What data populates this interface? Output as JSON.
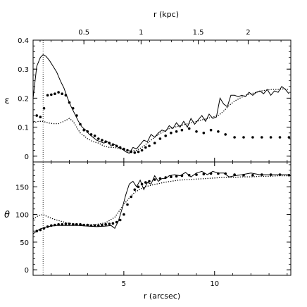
{
  "colors": {
    "frame": "#000000",
    "lines": "#000000",
    "background": "#ffffff"
  },
  "chart_data": [
    {
      "type": "line",
      "panel": "top",
      "ylabel": "ε",
      "xlim": [
        0,
        14.2
      ],
      "ylim": [
        -0.02,
        0.4
      ],
      "x_ticks_bottom": [
        5,
        10
      ],
      "y_ticks": [
        0,
        0.1,
        0.2,
        0.3,
        0.4
      ],
      "y_tick_labels": [
        "0",
        "0.1",
        "0.2",
        "0.3",
        "0.4"
      ],
      "top_axis": {
        "label": "r (kpc)",
        "tick_labels": [
          "0.5",
          "1",
          "1.5",
          "2"
        ],
        "tick_positions_arcsec": [
          2.8,
          5.95,
          9.1,
          11.85
        ]
      },
      "vertical_dotted_line_x": 0.55,
      "grid": false,
      "series": [
        {
          "style": "solid",
          "x": [
            0,
            0.2,
            0.4,
            0.55,
            0.7,
            0.9,
            1.1,
            1.3,
            1.5,
            1.7,
            1.9,
            2.1,
            2.3,
            2.5,
            2.7,
            2.9,
            3.1,
            3.3,
            3.5,
            3.7,
            3.9,
            4.1,
            4.3,
            4.5,
            4.7,
            4.9,
            5.1,
            5.3,
            5.5,
            5.7,
            5.9,
            6.1,
            6.3,
            6.5,
            6.7,
            6.9,
            7.1,
            7.3,
            7.5,
            7.7,
            7.9,
            8.1,
            8.3,
            8.5,
            8.7,
            8.9,
            9.1,
            9.3,
            9.5,
            9.7,
            9.9,
            10.1,
            10.3,
            10.5,
            10.7,
            10.9,
            11.1,
            11.3,
            11.5,
            11.7,
            11.9,
            12.1,
            12.3,
            12.5,
            12.7,
            12.9,
            13.1,
            13.3,
            13.5,
            13.7,
            13.9,
            14.1
          ],
          "y": [
            0.2,
            0.31,
            0.34,
            0.35,
            0.345,
            0.33,
            0.31,
            0.29,
            0.26,
            0.235,
            0.2,
            0.17,
            0.145,
            0.12,
            0.1,
            0.09,
            0.075,
            0.065,
            0.055,
            0.05,
            0.045,
            0.05,
            0.035,
            0.04,
            0.03,
            0.025,
            0.015,
            0.01,
            0.03,
            0.025,
            0.04,
            0.055,
            0.05,
            0.075,
            0.065,
            0.08,
            0.09,
            0.085,
            0.105,
            0.095,
            0.115,
            0.1,
            0.12,
            0.1,
            0.13,
            0.11,
            0.125,
            0.14,
            0.12,
            0.145,
            0.13,
            0.135,
            0.2,
            0.18,
            0.17,
            0.21,
            0.21,
            0.205,
            0.21,
            0.205,
            0.22,
            0.21,
            0.22,
            0.225,
            0.215,
            0.23,
            0.21,
            0.225,
            0.22,
            0.24,
            0.23,
            0.215
          ]
        },
        {
          "style": "dotted",
          "x": [
            0,
            0.3,
            0.55,
            0.8,
            1.1,
            1.4,
            1.7,
            2.0,
            2.2,
            2.4,
            2.6,
            2.8,
            3.0,
            3.3,
            3.6,
            3.9,
            4.2,
            4.5,
            4.8,
            5.1,
            5.4,
            5.7,
            6.0,
            6.3,
            6.6,
            6.9,
            7.2,
            7.5,
            7.8,
            8.1,
            8.4,
            8.7,
            9.0,
            9.3,
            9.6,
            9.9,
            10.2,
            10.5,
            10.8,
            11.1,
            11.4,
            11.7,
            12.0,
            12.3,
            12.6,
            12.9,
            13.2,
            13.5,
            13.8,
            14.1
          ],
          "y": [
            0.115,
            0.12,
            0.12,
            0.115,
            0.112,
            0.112,
            0.12,
            0.13,
            0.12,
            0.1,
            0.08,
            0.07,
            0.06,
            0.05,
            0.045,
            0.035,
            0.03,
            0.03,
            0.025,
            0.02,
            0.018,
            0.02,
            0.03,
            0.045,
            0.06,
            0.075,
            0.085,
            0.095,
            0.1,
            0.105,
            0.11,
            0.115,
            0.12,
            0.125,
            0.13,
            0.135,
            0.14,
            0.155,
            0.175,
            0.19,
            0.2,
            0.21,
            0.215,
            0.22,
            0.225,
            0.228,
            0.23,
            0.23,
            0.232,
            0.23
          ]
        },
        {
          "style": "points",
          "x": [
            0.2,
            0.4,
            0.6,
            0.8,
            1.0,
            1.2,
            1.4,
            1.6,
            1.8,
            2.0,
            2.2,
            2.4,
            2.6,
            2.8,
            3.0,
            3.2,
            3.4,
            3.6,
            3.8,
            4.0,
            4.2,
            4.4,
            4.6,
            4.8,
            5.0,
            5.2,
            5.4,
            5.6,
            5.8,
            6.0,
            6.2,
            6.4,
            6.7,
            7.0,
            7.3,
            7.6,
            7.9,
            8.2,
            8.6,
            9.0,
            9.4,
            9.8,
            10.2,
            10.6,
            11.1,
            11.6,
            12.1,
            12.6,
            13.1,
            13.6,
            14.1
          ],
          "y": [
            0.14,
            0.135,
            0.165,
            0.21,
            0.212,
            0.215,
            0.22,
            0.215,
            0.21,
            0.185,
            0.165,
            0.14,
            0.11,
            0.09,
            0.085,
            0.075,
            0.07,
            0.06,
            0.055,
            0.05,
            0.045,
            0.04,
            0.035,
            0.03,
            0.025,
            0.02,
            0.015,
            0.012,
            0.015,
            0.02,
            0.03,
            0.035,
            0.045,
            0.06,
            0.07,
            0.08,
            0.085,
            0.09,
            0.095,
            0.085,
            0.08,
            0.09,
            0.085,
            0.075,
            0.065,
            0.065,
            0.065,
            0.065,
            0.065,
            0.065,
            0.065
          ]
        }
      ]
    },
    {
      "type": "line",
      "panel": "bottom",
      "xlabel": "r (arcsec)",
      "ylabel": "θ",
      "xlim": [
        0,
        14.2
      ],
      "ylim": [
        -10,
        195
      ],
      "x_ticks": [
        5,
        10
      ],
      "x_tick_labels": [
        "5",
        "10"
      ],
      "y_ticks": [
        0,
        50,
        100,
        150
      ],
      "y_tick_labels": [
        "0",
        "50",
        "100",
        "150"
      ],
      "vertical_dotted_line_x": 0.55,
      "grid": false,
      "series": [
        {
          "style": "solid",
          "x": [
            0,
            0.2,
            0.4,
            0.6,
            0.8,
            1.0,
            1.3,
            1.6,
            2.0,
            2.5,
            3.0,
            3.5,
            4.0,
            4.3,
            4.5,
            4.7,
            4.9,
            5.1,
            5.3,
            5.5,
            5.7,
            5.9,
            6.1,
            6.3,
            6.5,
            6.7,
            6.9,
            7.1,
            7.3,
            7.5,
            7.8,
            8.1,
            8.4,
            8.7,
            9.0,
            9.3,
            9.6,
            9.9,
            10.2,
            10.5,
            10.8,
            11.1,
            11.5,
            12.0,
            12.5,
            13.0,
            13.5,
            14.0,
            14.2
          ],
          "y": [
            65,
            70,
            74,
            76,
            78,
            79,
            80,
            80,
            80,
            80,
            79,
            78,
            79,
            80,
            75,
            88,
            110,
            135,
            155,
            160,
            150,
            162,
            145,
            158,
            155,
            170,
            160,
            165,
            165,
            170,
            172,
            170,
            176,
            168,
            175,
            178,
            172,
            178,
            175,
            175,
            168,
            170,
            172,
            175,
            172,
            172,
            172,
            172,
            170
          ]
        },
        {
          "style": "dotted",
          "x": [
            0,
            0.3,
            0.55,
            0.8,
            1.1,
            1.5,
            2.0,
            2.5,
            3.0,
            3.5,
            4.0,
            4.5,
            5.0,
            5.3,
            5.6,
            5.9,
            6.2,
            6.5,
            6.8,
            7.2,
            7.6,
            8.0,
            8.5,
            9.0,
            9.5,
            10.0,
            10.5,
            11.0,
            11.5,
            12.0,
            12.5,
            13.0,
            13.5,
            14.0,
            14.2
          ],
          "y": [
            92,
            98,
            100,
            96,
            92,
            88,
            84,
            82,
            81,
            82,
            85,
            95,
            118,
            130,
            140,
            146,
            150,
            153,
            155,
            158,
            160,
            162,
            163,
            164,
            165,
            166,
            167,
            167,
            168,
            168,
            169,
            169,
            170,
            170,
            170
          ]
        },
        {
          "style": "points",
          "x": [
            0.2,
            0.4,
            0.6,
            0.8,
            1.0,
            1.2,
            1.4,
            1.6,
            1.8,
            2.0,
            2.2,
            2.4,
            2.6,
            2.8,
            3.0,
            3.2,
            3.4,
            3.6,
            3.8,
            4.0,
            4.2,
            4.4,
            4.6,
            4.8,
            5.0,
            5.2,
            5.4,
            5.6,
            5.8,
            6.0,
            6.2,
            6.4,
            6.7,
            7.0,
            7.3,
            7.6,
            7.9,
            8.2,
            8.6,
            9.0,
            9.4,
            9.8,
            10.2,
            10.6,
            11.1,
            11.6,
            12.1,
            12.6,
            13.1,
            13.6,
            14.1
          ],
          "y": [
            70,
            72,
            75,
            78,
            80,
            81,
            82,
            82,
            83,
            83,
            82,
            82,
            82,
            81,
            81,
            80,
            80,
            80,
            81,
            82,
            83,
            84,
            86,
            90,
            100,
            118,
            132,
            145,
            150,
            155,
            158,
            160,
            163,
            165,
            167,
            168,
            169,
            170,
            171,
            172,
            173,
            174,
            174,
            174,
            172,
            171,
            171,
            172,
            172,
            172,
            171
          ]
        }
      ]
    }
  ]
}
